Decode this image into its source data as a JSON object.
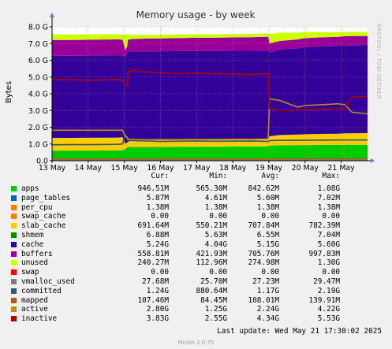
{
  "chart_data": {
    "type": "area",
    "title": "Memory usage - by week",
    "ylabel": "Bytes",
    "ylim": [
      0,
      8
    ],
    "y_unit": "G",
    "y_ticks": [
      0,
      1,
      2,
      3,
      4,
      5,
      6,
      7,
      8
    ],
    "y_tick_labels": [
      "0.0",
      "1.0 G",
      "2.0 G",
      "3.0 G",
      "4.0 G",
      "5.0 G",
      "6.0 G",
      "7.0 G",
      "8.0 G"
    ],
    "x_range": [
      "2025-05-13",
      "2025-05-21T17:30"
    ],
    "x_ticks": [
      "2025-05-13",
      "2025-05-14",
      "2025-05-15",
      "2025-05-16",
      "2025-05-17",
      "2025-05-18",
      "2025-05-19",
      "2025-05-20",
      "2025-05-21"
    ],
    "x_tick_labels": [
      "13 May",
      "14 May",
      "15 May",
      "16 May",
      "17 May",
      "18 May",
      "19 May",
      "20 May",
      "21 May"
    ],
    "x_days": [
      0,
      0.5,
      1.0,
      1.8,
      1.95,
      2.03,
      2.08,
      2.1,
      2.2,
      2.6,
      3.0,
      3.5,
      4.0,
      4.5,
      5.0,
      5.5,
      5.98,
      6.02,
      6.3,
      6.8,
      7.0,
      7.5,
      7.9,
      8.1,
      8.3,
      8.73
    ],
    "series": [
      {
        "name": "apps",
        "values": [
          0.6,
          0.6,
          0.6,
          0.61,
          0.62,
          0.7,
          0.8,
          0.82,
          0.82,
          0.82,
          0.82,
          0.83,
          0.83,
          0.83,
          0.84,
          0.84,
          0.85,
          0.9,
          0.92,
          0.93,
          0.93,
          0.94,
          0.94,
          0.95,
          0.95,
          0.95
        ]
      },
      {
        "name": "page_tables",
        "values": [
          0.006,
          0.006,
          0.006,
          0.006,
          0.006,
          0.006,
          0.006,
          0.006,
          0.006,
          0.006,
          0.006,
          0.006,
          0.006,
          0.006,
          0.006,
          0.006,
          0.006,
          0.006,
          0.006,
          0.006,
          0.006,
          0.006,
          0.006,
          0.006,
          0.006,
          0.006
        ]
      },
      {
        "name": "per_cpu",
        "values": [
          0.0014,
          0.0014,
          0.0014,
          0.0014,
          0.0014,
          0.0014,
          0.0014,
          0.0014,
          0.0014,
          0.0014,
          0.0014,
          0.0014,
          0.0014,
          0.0014,
          0.0014,
          0.0014,
          0.0014,
          0.0014,
          0.0014,
          0.0014,
          0.0014,
          0.0014,
          0.0014,
          0.0014,
          0.0014,
          0.0014
        ]
      },
      {
        "name": "swap_cache",
        "values": [
          0,
          0,
          0,
          0,
          0,
          0,
          0,
          0,
          0,
          0,
          0,
          0,
          0,
          0,
          0,
          0,
          0,
          0,
          0,
          0,
          0,
          0,
          0,
          0,
          0,
          0
        ]
      },
      {
        "name": "slab_cache",
        "values": [
          0.75,
          0.75,
          0.76,
          0.76,
          0.77,
          0.3,
          0.28,
          0.3,
          0.38,
          0.4,
          0.4,
          0.41,
          0.42,
          0.42,
          0.43,
          0.44,
          0.45,
          0.55,
          0.6,
          0.62,
          0.64,
          0.65,
          0.66,
          0.67,
          0.68,
          0.69
        ]
      },
      {
        "name": "shmem",
        "values": [
          0.007,
          0.007,
          0.007,
          0.007,
          0.007,
          0.007,
          0.007,
          0.007,
          0.007,
          0.007,
          0.007,
          0.007,
          0.007,
          0.007,
          0.007,
          0.007,
          0.007,
          0.007,
          0.007,
          0.007,
          0.007,
          0.007,
          0.007,
          0.007,
          0.007,
          0.007
        ]
      },
      {
        "name": "cache",
        "values": [
          4.9,
          4.9,
          4.9,
          4.9,
          4.88,
          5.2,
          5.35,
          5.4,
          5.3,
          5.3,
          5.3,
          5.29,
          5.29,
          5.28,
          5.28,
          5.27,
          5.27,
          5.0,
          5.1,
          5.15,
          5.2,
          5.22,
          5.23,
          5.24,
          5.24,
          5.24
        ]
      },
      {
        "name": "buffers",
        "values": [
          0.95,
          0.95,
          0.95,
          0.96,
          0.95,
          0.4,
          0.4,
          0.7,
          0.75,
          0.76,
          0.77,
          0.78,
          0.79,
          0.8,
          0.8,
          0.81,
          0.82,
          0.55,
          0.52,
          0.53,
          0.54,
          0.55,
          0.55,
          0.56,
          0.56,
          0.56
        ]
      },
      {
        "name": "unused",
        "values": [
          0.33,
          0.33,
          0.32,
          0.31,
          0.3,
          0.9,
          0.72,
          0.3,
          0.25,
          0.22,
          0.22,
          0.21,
          0.21,
          0.2,
          0.2,
          0.2,
          0.2,
          0.55,
          0.5,
          0.4,
          0.37,
          0.3,
          0.28,
          0.26,
          0.25,
          0.24
        ]
      },
      {
        "name": "swap",
        "values": [
          0,
          0,
          0,
          0,
          0,
          0,
          0,
          0,
          0,
          0,
          0,
          0,
          0,
          0,
          0,
          0,
          0,
          0,
          0,
          0,
          0,
          0,
          0,
          0,
          0,
          0
        ]
      },
      {
        "name": "vmalloc_used",
        "values": [
          0.027,
          0.027,
          0.027,
          0.027,
          0.027,
          0.027,
          0.027,
          0.027,
          0.027,
          0.027,
          0.027,
          0.027,
          0.027,
          0.027,
          0.027,
          0.027,
          0.027,
          0.027,
          0.027,
          0.027,
          0.027,
          0.027,
          0.027,
          0.027,
          0.027,
          0.027
        ]
      },
      {
        "name": "committed",
        "values": [
          0.95,
          0.96,
          0.96,
          0.98,
          1.0,
          1.55,
          1.3,
          1.22,
          1.2,
          1.18,
          1.15,
          1.17,
          1.18,
          1.16,
          1.17,
          1.18,
          1.15,
          1.2,
          1.22,
          1.22,
          1.22,
          1.23,
          1.24,
          1.24,
          1.24,
          1.24
        ]
      },
      {
        "name": "mapped",
        "values": [
          0.1,
          0.1,
          0.1,
          0.1,
          0.1,
          0.1,
          0.1,
          0.1,
          0.1,
          0.1,
          0.1,
          0.1,
          0.1,
          0.1,
          0.1,
          0.1,
          0.1,
          0.11,
          0.11,
          0.11,
          0.11,
          0.11,
          0.11,
          0.11,
          0.11,
          0.11
        ]
      },
      {
        "name": "active",
        "values": [
          1.82,
          1.82,
          1.82,
          1.82,
          1.82,
          1.45,
          1.4,
          1.3,
          1.28,
          1.25,
          1.26,
          1.26,
          1.27,
          1.27,
          1.28,
          1.28,
          1.3,
          3.7,
          3.6,
          3.2,
          3.3,
          3.35,
          3.4,
          3.35,
          2.9,
          2.8
        ]
      },
      {
        "name": "inactive",
        "values": [
          4.85,
          4.85,
          4.8,
          4.85,
          4.8,
          4.5,
          4.48,
          5.3,
          5.4,
          5.3,
          5.25,
          5.2,
          5.22,
          5.2,
          5.18,
          5.15,
          5.2,
          3.1,
          3.0,
          3.0,
          3.05,
          3.1,
          3.1,
          3.15,
          3.8,
          3.83
        ]
      }
    ],
    "stack_order": [
      "apps",
      "page_tables",
      "per_cpu",
      "swap_cache",
      "slab_cache",
      "shmem",
      "cache",
      "buffers",
      "unused",
      "swap"
    ],
    "line_order": [
      "vmalloc_used",
      "committed",
      "mapped",
      "active",
      "inactive"
    ]
  },
  "colors": {
    "apps": "#00cc00",
    "page_tables": "#0066b3",
    "per_cpu": "#ff8000",
    "swap_cache": "#ff8000",
    "slab_cache": "#ffcc00",
    "shmem": "#008f00",
    "cache": "#330099",
    "buffers": "#990099",
    "unused": "#ccff00",
    "swap": "#ff0000",
    "vmalloc_used": "#808080",
    "committed": "#2b5a75",
    "mapped": "#b25a1a",
    "active": "#b8901a",
    "inactive": "#b00000",
    "grid": "#e07070",
    "axis": "#000000"
  },
  "legend": {
    "headers": [
      "Cur:",
      "Min:",
      "Avg:",
      "Max:"
    ],
    "rows": [
      {
        "name": "apps",
        "cur": "946.51M",
        "min": "565.30M",
        "avg": "842.62M",
        "max": "1.08G"
      },
      {
        "name": "page_tables",
        "cur": "5.87M",
        "min": "4.61M",
        "avg": "5.60M",
        "max": "7.02M"
      },
      {
        "name": "per_cpu",
        "cur": "1.38M",
        "min": "1.38M",
        "avg": "1.38M",
        "max": "1.38M"
      },
      {
        "name": "swap_cache",
        "cur": "0.00",
        "min": "0.00",
        "avg": "0.00",
        "max": "0.00"
      },
      {
        "name": "slab_cache",
        "cur": "691.64M",
        "min": "550.21M",
        "avg": "707.84M",
        "max": "782.39M"
      },
      {
        "name": "shmem",
        "cur": "6.88M",
        "min": "5.63M",
        "avg": "6.55M",
        "max": "7.04M"
      },
      {
        "name": "cache",
        "cur": "5.24G",
        "min": "4.04G",
        "avg": "5.15G",
        "max": "5.60G"
      },
      {
        "name": "buffers",
        "cur": "558.81M",
        "min": "421.93M",
        "avg": "705.76M",
        "max": "997.83M"
      },
      {
        "name": "unused",
        "cur": "240.27M",
        "min": "112.96M",
        "avg": "274.98M",
        "max": "1.30G"
      },
      {
        "name": "swap",
        "cur": "0.00",
        "min": "0.00",
        "avg": "0.00",
        "max": "0.00"
      },
      {
        "name": "vmalloc_used",
        "cur": "27.68M",
        "min": "25.70M",
        "avg": "27.23M",
        "max": "29.47M"
      },
      {
        "name": "committed",
        "cur": "1.24G",
        "min": "880.64M",
        "avg": "1.17G",
        "max": "2.19G"
      },
      {
        "name": "mapped",
        "cur": "107.46M",
        "min": "84.45M",
        "avg": "108.01M",
        "max": "139.91M"
      },
      {
        "name": "active",
        "cur": "2.80G",
        "min": "1.25G",
        "avg": "2.24G",
        "max": "4.22G"
      },
      {
        "name": "inactive",
        "cur": "3.83G",
        "min": "2.55G",
        "avg": "4.34G",
        "max": "5.53G"
      }
    ]
  },
  "last_update": "Last update: Wed May 21 17:30:02 2025",
  "footer": "Munin 2.0.75",
  "watermark": "RRDTOOL / TOBI OETIKER"
}
